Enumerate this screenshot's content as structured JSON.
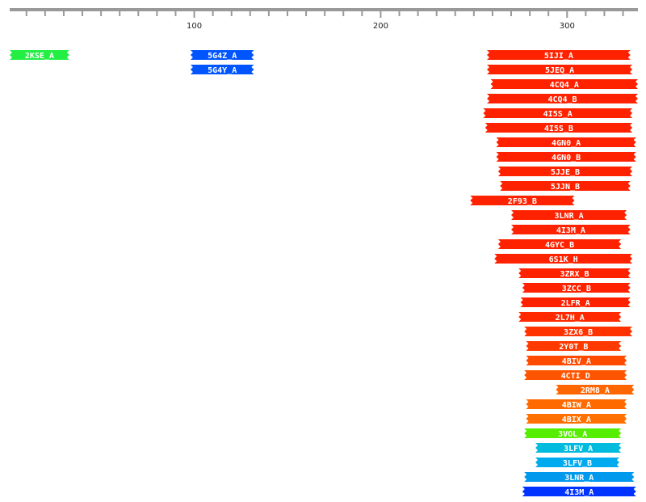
{
  "chart_data": {
    "type": "range",
    "xlim": [
      1,
      338
    ],
    "xticks": [
      100,
      200,
      300
    ],
    "minor_xticks": [
      10,
      20,
      30,
      40,
      50,
      60,
      70,
      80,
      90,
      110,
      120,
      130,
      140,
      150,
      160,
      170,
      180,
      190,
      210,
      220,
      230,
      240,
      250,
      260,
      270,
      280,
      290,
      310,
      320,
      330
    ],
    "series": [
      {
        "name": "2KSE_A",
        "color": "#22ee44",
        "values": [
          1,
          33
        ]
      },
      {
        "name": "5G4Z_A",
        "color": "#0055ff",
        "values": [
          98,
          132
        ]
      },
      {
        "name": "5G4Y_A",
        "color": "#0055ff",
        "values": [
          98,
          132
        ]
      },
      {
        "name": "5IJI_A",
        "color": "#ff2200",
        "values": [
          257,
          334
        ]
      },
      {
        "name": "5JEQ_A",
        "color": "#ff2200",
        "values": [
          257,
          335
        ]
      },
      {
        "name": "4CQ4_A",
        "color": "#ff2200",
        "values": [
          259,
          338
        ]
      },
      {
        "name": "4CQ4_B",
        "color": "#ff2200",
        "values": [
          257,
          338
        ]
      },
      {
        "name": "4I5S_A",
        "color": "#ff2200",
        "values": [
          255,
          335
        ]
      },
      {
        "name": "4I5S_B",
        "color": "#ff2200",
        "values": [
          256,
          335
        ]
      },
      {
        "name": "4GN0_A",
        "color": "#ff2200",
        "values": [
          262,
          337
        ]
      },
      {
        "name": "4GN0_B",
        "color": "#ff2200",
        "values": [
          262,
          337
        ]
      },
      {
        "name": "5JJE_B",
        "color": "#ff2200",
        "values": [
          263,
          335
        ]
      },
      {
        "name": "5JJN_B",
        "color": "#ff2200",
        "values": [
          264,
          334
        ]
      },
      {
        "name": "2F93_B",
        "color": "#ff2200",
        "values": [
          248,
          304
        ]
      },
      {
        "name": "3LNR_A",
        "color": "#ff2200",
        "values": [
          270,
          332
        ]
      },
      {
        "name": "4I3M_A",
        "color": "#ff2200",
        "values": [
          270,
          334
        ]
      },
      {
        "name": "4GYC_B",
        "color": "#ff2200",
        "values": [
          263,
          329
        ]
      },
      {
        "name": "6S1K_H",
        "color": "#ff2200",
        "values": [
          261,
          335
        ]
      },
      {
        "name": "3ZRX_B",
        "color": "#ff2200",
        "values": [
          274,
          334
        ]
      },
      {
        "name": "3ZCC_B",
        "color": "#ff2200",
        "values": [
          276,
          334
        ]
      },
      {
        "name": "2LFR_A",
        "color": "#ff2200",
        "values": [
          275,
          334
        ]
      },
      {
        "name": "2L7H_A",
        "color": "#ff2a00",
        "values": [
          274,
          329
        ]
      },
      {
        "name": "3ZX6_B",
        "color": "#ff3300",
        "values": [
          277,
          335
        ]
      },
      {
        "name": "2Y0T_B",
        "color": "#ff3a00",
        "values": [
          278,
          329
        ]
      },
      {
        "name": "4BIV_A",
        "color": "#ff4a00",
        "values": [
          278,
          332
        ]
      },
      {
        "name": "4CTI_D",
        "color": "#ff5500",
        "values": [
          277,
          332
        ]
      },
      {
        "name": "2RM8_A",
        "color": "#ff6600",
        "values": [
          294,
          336
        ]
      },
      {
        "name": "4BIW_A",
        "color": "#ff6a00",
        "values": [
          278,
          332
        ]
      },
      {
        "name": "4BIX_A",
        "color": "#ff7000",
        "values": [
          278,
          332
        ]
      },
      {
        "name": "3VOL_A",
        "color": "#55ee00",
        "values": [
          277,
          329
        ]
      },
      {
        "name": "3LFV_A",
        "color": "#00bbdd",
        "values": [
          283,
          329
        ]
      },
      {
        "name": "3LFV_B",
        "color": "#00aaee",
        "values": [
          283,
          328
        ]
      },
      {
        "name": "3LNR_A",
        "color": "#0099ee",
        "values": [
          277,
          336
        ]
      },
      {
        "name": "4I3M_A",
        "color": "#0033ff",
        "values": [
          276,
          337
        ]
      }
    ]
  }
}
